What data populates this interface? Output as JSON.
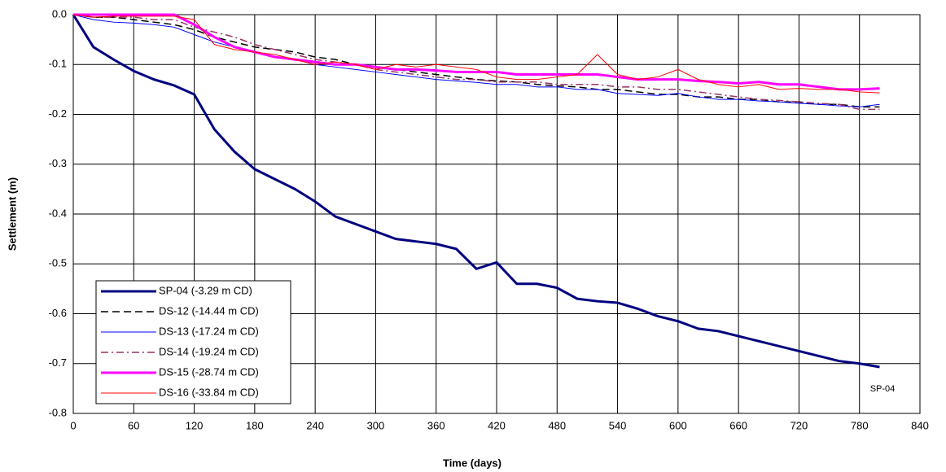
{
  "chart_data": {
    "type": "line",
    "x_label": "Time (days)",
    "y_label": "Settlement (m)",
    "annotation": "SP-04",
    "grid": true,
    "legend": "lower left",
    "xlim": [
      0,
      840
    ],
    "xticks": [
      0,
      60,
      120,
      180,
      240,
      300,
      360,
      420,
      480,
      540,
      600,
      660,
      720,
      780,
      840
    ],
    "ylim": [
      -0.8,
      0
    ],
    "yticks": [
      {
        "value": 0,
        "label": "0.0"
      },
      -0.1,
      -0.2,
      -0.3,
      -0.4,
      -0.5,
      -0.6,
      -0.7,
      -0.8
    ],
    "x": [
      0,
      20,
      40,
      60,
      80,
      100,
      120,
      140,
      160,
      180,
      200,
      220,
      240,
      260,
      280,
      300,
      320,
      340,
      360,
      380,
      400,
      420,
      440,
      460,
      480,
      500,
      520,
      540,
      560,
      580,
      600,
      620,
      640,
      660,
      680,
      700,
      720,
      740,
      760,
      780,
      800
    ],
    "series": [
      {
        "name": "SP-04 (-3.29 m CD)",
        "color": "#000080",
        "linewidth": 3,
        "style": "solid",
        "values": [
          0,
          -0.065,
          -0.09,
          -0.113,
          -0.13,
          -0.142,
          -0.16,
          -0.23,
          -0.275,
          -0.31,
          -0.33,
          -0.35,
          -0.375,
          -0.405,
          -0.42,
          -0.435,
          -0.45,
          -0.455,
          -0.46,
          -0.47,
          -0.51,
          -0.497,
          -0.54,
          -0.54,
          -0.548,
          -0.57,
          -0.575,
          -0.578,
          -0.59,
          -0.605,
          -0.615,
          -0.63,
          -0.635,
          -0.645,
          -0.655,
          -0.665,
          -0.675,
          -0.685,
          -0.695,
          -0.7,
          -0.707
        ]
      },
      {
        "name": "DS-12 (-14.44 m CD)",
        "color": "#000000",
        "linewidth": 1.5,
        "style": "dashed",
        "values": [
          0,
          -0.005,
          -0.005,
          -0.01,
          -0.015,
          -0.02,
          -0.03,
          -0.045,
          -0.055,
          -0.065,
          -0.07,
          -0.075,
          -0.085,
          -0.09,
          -0.1,
          -0.105,
          -0.11,
          -0.115,
          -0.12,
          -0.125,
          -0.13,
          -0.133,
          -0.135,
          -0.14,
          -0.143,
          -0.145,
          -0.15,
          -0.15,
          -0.155,
          -0.16,
          -0.16,
          -0.165,
          -0.165,
          -0.17,
          -0.17,
          -0.175,
          -0.175,
          -0.18,
          -0.18,
          -0.185,
          -0.185
        ]
      },
      {
        "name": "DS-13 (-17.24 m CD)",
        "color": "#0000ff",
        "linewidth": 1,
        "style": "solid",
        "values": [
          0,
          -0.01,
          -0.015,
          -0.017,
          -0.02,
          -0.025,
          -0.04,
          -0.055,
          -0.065,
          -0.075,
          -0.085,
          -0.09,
          -0.1,
          -0.105,
          -0.11,
          -0.115,
          -0.12,
          -0.125,
          -0.13,
          -0.133,
          -0.136,
          -0.14,
          -0.14,
          -0.145,
          -0.145,
          -0.15,
          -0.15,
          -0.158,
          -0.16,
          -0.162,
          -0.158,
          -0.165,
          -0.17,
          -0.17,
          -0.173,
          -0.175,
          -0.178,
          -0.18,
          -0.183,
          -0.185,
          -0.18
        ]
      },
      {
        "name": "DS-14 (-19.24 m CD)",
        "color": "#993366",
        "linewidth": 1.5,
        "style": "dashdot",
        "values": [
          0,
          -0.005,
          -0.005,
          -0.005,
          -0.01,
          -0.01,
          -0.025,
          -0.035,
          -0.045,
          -0.06,
          -0.07,
          -0.08,
          -0.09,
          -0.095,
          -0.1,
          -0.11,
          -0.115,
          -0.12,
          -0.125,
          -0.13,
          -0.13,
          -0.135,
          -0.135,
          -0.135,
          -0.14,
          -0.14,
          -0.14,
          -0.145,
          -0.145,
          -0.15,
          -0.15,
          -0.155,
          -0.16,
          -0.165,
          -0.17,
          -0.172,
          -0.175,
          -0.178,
          -0.18,
          -0.19,
          -0.19
        ]
      },
      {
        "name": "DS-15 (-28.74 m CD)",
        "color": "#ff00ff",
        "linewidth": 3,
        "style": "solid",
        "values": [
          0,
          0,
          0,
          0,
          0,
          0,
          -0.02,
          -0.045,
          -0.065,
          -0.075,
          -0.085,
          -0.09,
          -0.095,
          -0.1,
          -0.1,
          -0.105,
          -0.11,
          -0.11,
          -0.112,
          -0.115,
          -0.115,
          -0.115,
          -0.12,
          -0.12,
          -0.12,
          -0.12,
          -0.12,
          -0.125,
          -0.13,
          -0.13,
          -0.13,
          -0.133,
          -0.135,
          -0.138,
          -0.135,
          -0.14,
          -0.14,
          -0.145,
          -0.15,
          -0.15,
          -0.148
        ]
      },
      {
        "name": "DS-16 (-33.84 m CD)",
        "color": "#ff0000",
        "linewidth": 1,
        "style": "solid",
        "values": [
          0,
          -0.005,
          -0.003,
          -0.003,
          -0.003,
          -0.003,
          -0.01,
          -0.06,
          -0.07,
          -0.075,
          -0.08,
          -0.09,
          -0.1,
          -0.095,
          -0.1,
          -0.11,
          -0.1,
          -0.105,
          -0.1,
          -0.105,
          -0.11,
          -0.125,
          -0.13,
          -0.13,
          -0.125,
          -0.12,
          -0.08,
          -0.12,
          -0.13,
          -0.125,
          -0.11,
          -0.13,
          -0.14,
          -0.145,
          -0.14,
          -0.15,
          -0.148,
          -0.15,
          -0.15,
          -0.155,
          -0.157
        ]
      }
    ]
  }
}
